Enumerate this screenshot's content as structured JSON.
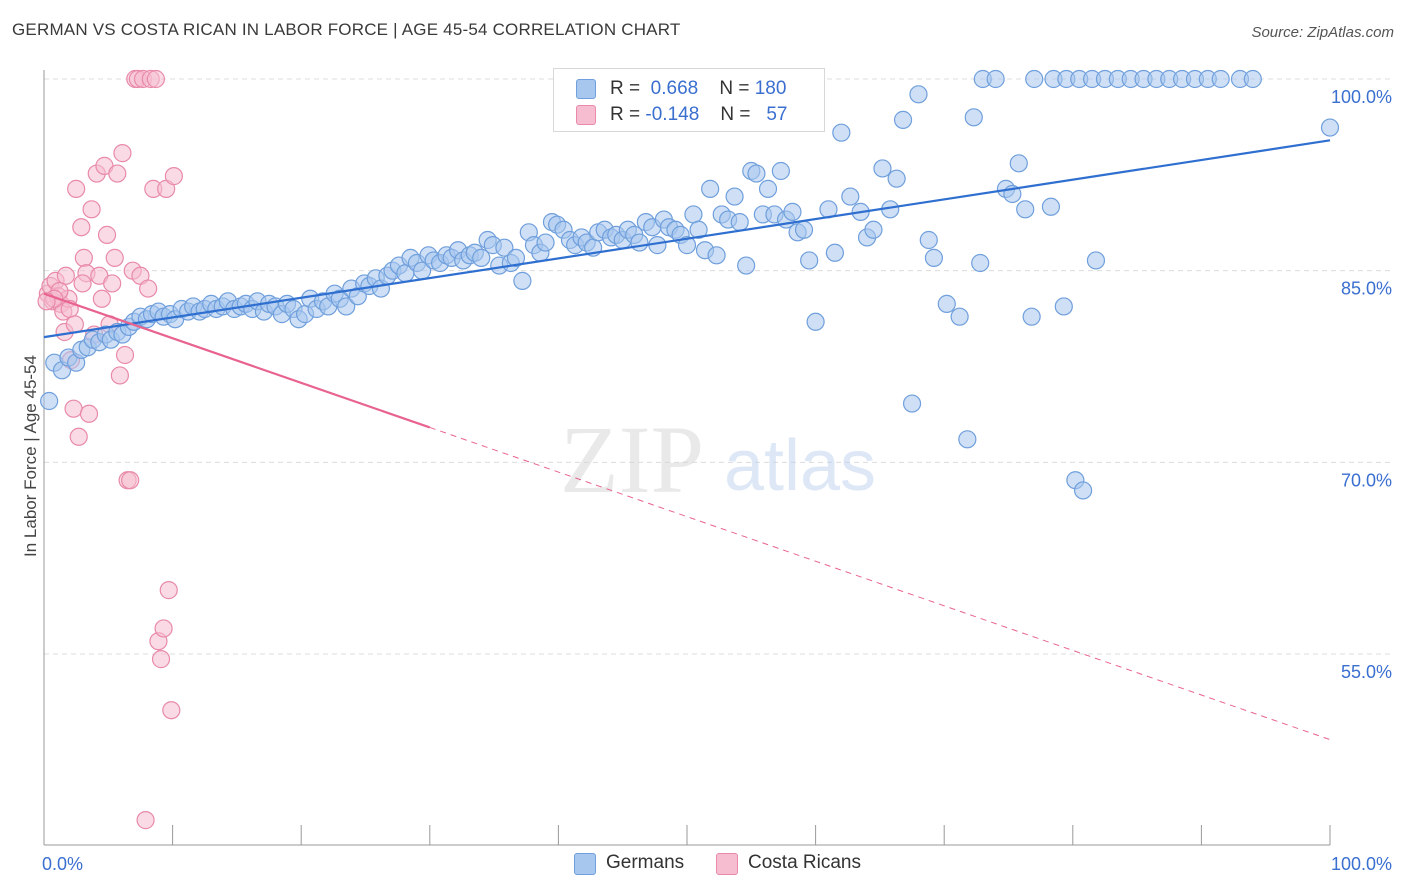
{
  "title": "GERMAN VS COSTA RICAN IN LABOR FORCE | AGE 45-54 CORRELATION CHART",
  "source": "Source: ZipAtlas.com",
  "watermark": {
    "zip": "ZIP",
    "atlas": "atlas"
  },
  "legend": {
    "rows": [
      {
        "r_label": "R =",
        "r_value": "0.668",
        "n_label": "N =",
        "n_value": "180"
      },
      {
        "r_label": "R =",
        "r_value": "-0.148",
        "n_label": "N =",
        "n_value": "57"
      }
    ]
  },
  "bottom_legend": [
    "Germans",
    "Costa Ricans"
  ],
  "colors": {
    "germans_fill": "#a8c7ef",
    "germans_stroke": "#6f9fdc",
    "germans_line": "#2f6fd0",
    "costa_fill": "#f6bdd0",
    "costa_stroke": "#e88aa8",
    "costa_line": "#e8648f",
    "tick_label": "#3a6fd0",
    "grid": "#dcdcdc"
  },
  "chart_data": {
    "type": "scatter",
    "title": "GERMAN VS COSTA RICAN IN LABOR FORCE | AGE 45-54 CORRELATION CHART",
    "xlabel": "",
    "ylabel": "In Labor Force | Age 45-54",
    "xlim": [
      0,
      100
    ],
    "ylim": [
      40,
      102
    ],
    "x_tick_labels": [
      "0.0%",
      "100.0%"
    ],
    "y_ticks": [
      55,
      70,
      85,
      100
    ],
    "y_tick_labels": [
      "55.0%",
      "70.0%",
      "85.0%",
      "100.0%"
    ],
    "grid": "horizontal dashed",
    "series": [
      {
        "name": "Germans",
        "R": 0.668,
        "N": 180,
        "trend": {
          "x": [
            0,
            100
          ],
          "y": [
            79.8,
            95.2
          ],
          "dashed_from": null
        },
        "points": [
          [
            0.4,
            74.8
          ],
          [
            0.8,
            77.8
          ],
          [
            1.4,
            77.2
          ],
          [
            1.9,
            78.2
          ],
          [
            2.5,
            77.8
          ],
          [
            2.9,
            78.8
          ],
          [
            3.4,
            79.0
          ],
          [
            3.8,
            79.6
          ],
          [
            4.3,
            79.4
          ],
          [
            4.8,
            80.0
          ],
          [
            5.2,
            79.6
          ],
          [
            5.7,
            80.2
          ],
          [
            6.1,
            80.0
          ],
          [
            6.6,
            80.6
          ],
          [
            7.0,
            81.0
          ],
          [
            7.5,
            81.4
          ],
          [
            8.0,
            81.2
          ],
          [
            8.4,
            81.6
          ],
          [
            8.9,
            81.8
          ],
          [
            9.3,
            81.4
          ],
          [
            9.8,
            81.6
          ],
          [
            10.2,
            81.2
          ],
          [
            10.7,
            82.0
          ],
          [
            11.2,
            81.8
          ],
          [
            11.6,
            82.2
          ],
          [
            12.1,
            81.8
          ],
          [
            12.5,
            82.0
          ],
          [
            13.0,
            82.4
          ],
          [
            13.4,
            82.0
          ],
          [
            13.9,
            82.2
          ],
          [
            14.3,
            82.6
          ],
          [
            14.8,
            82.0
          ],
          [
            15.3,
            82.2
          ],
          [
            15.7,
            82.4
          ],
          [
            16.2,
            82.0
          ],
          [
            16.6,
            82.6
          ],
          [
            17.1,
            81.8
          ],
          [
            17.5,
            82.4
          ],
          [
            18.0,
            82.2
          ],
          [
            18.5,
            81.6
          ],
          [
            18.9,
            82.4
          ],
          [
            19.4,
            82.0
          ],
          [
            19.8,
            81.2
          ],
          [
            20.3,
            81.6
          ],
          [
            20.7,
            82.8
          ],
          [
            21.2,
            82.0
          ],
          [
            21.7,
            82.6
          ],
          [
            22.1,
            82.2
          ],
          [
            22.6,
            83.2
          ],
          [
            23.0,
            82.8
          ],
          [
            23.5,
            82.2
          ],
          [
            23.9,
            83.6
          ],
          [
            24.4,
            83.0
          ],
          [
            24.9,
            84.0
          ],
          [
            25.3,
            83.8
          ],
          [
            25.8,
            84.4
          ],
          [
            26.2,
            83.6
          ],
          [
            26.7,
            84.6
          ],
          [
            27.1,
            85.0
          ],
          [
            27.6,
            85.4
          ],
          [
            28.1,
            84.8
          ],
          [
            28.5,
            86.0
          ],
          [
            29.0,
            85.6
          ],
          [
            29.4,
            85.0
          ],
          [
            29.9,
            86.2
          ],
          [
            30.3,
            85.8
          ],
          [
            30.8,
            85.6
          ],
          [
            31.3,
            86.2
          ],
          [
            31.7,
            86.0
          ],
          [
            32.2,
            86.6
          ],
          [
            32.6,
            85.8
          ],
          [
            33.1,
            86.2
          ],
          [
            33.5,
            86.4
          ],
          [
            34.0,
            86.0
          ],
          [
            34.5,
            87.4
          ],
          [
            34.9,
            87.0
          ],
          [
            35.4,
            85.4
          ],
          [
            35.8,
            86.8
          ],
          [
            36.3,
            85.6
          ],
          [
            36.7,
            86.0
          ],
          [
            37.2,
            84.2
          ],
          [
            37.7,
            88.0
          ],
          [
            38.1,
            87.0
          ],
          [
            38.6,
            86.4
          ],
          [
            39.0,
            87.2
          ],
          [
            39.5,
            88.8
          ],
          [
            39.9,
            88.6
          ],
          [
            40.4,
            88.2
          ],
          [
            40.9,
            87.4
          ],
          [
            41.3,
            87.0
          ],
          [
            41.8,
            87.6
          ],
          [
            42.2,
            87.2
          ],
          [
            42.7,
            86.8
          ],
          [
            43.1,
            88.0
          ],
          [
            43.6,
            88.2
          ],
          [
            44.1,
            87.6
          ],
          [
            44.5,
            87.8
          ],
          [
            45.0,
            87.4
          ],
          [
            45.4,
            88.2
          ],
          [
            45.9,
            87.8
          ],
          [
            46.3,
            87.2
          ],
          [
            46.8,
            88.8
          ],
          [
            47.3,
            88.4
          ],
          [
            47.7,
            87.0
          ],
          [
            48.2,
            89.0
          ],
          [
            48.6,
            88.4
          ],
          [
            49.1,
            88.2
          ],
          [
            49.5,
            87.8
          ],
          [
            50.0,
            87.0
          ],
          [
            50.5,
            89.4
          ],
          [
            50.9,
            88.2
          ],
          [
            51.4,
            86.6
          ],
          [
            51.8,
            91.4
          ],
          [
            52.3,
            86.2
          ],
          [
            52.7,
            89.4
          ],
          [
            53.2,
            89.0
          ],
          [
            53.7,
            90.8
          ],
          [
            54.1,
            88.8
          ],
          [
            54.6,
            85.4
          ],
          [
            55.0,
            92.8
          ],
          [
            55.4,
            92.6
          ],
          [
            55.9,
            89.4
          ],
          [
            56.3,
            91.4
          ],
          [
            56.8,
            89.4
          ],
          [
            57.3,
            92.8
          ],
          [
            57.7,
            89.0
          ],
          [
            58.2,
            89.6
          ],
          [
            58.6,
            88.0
          ],
          [
            59.1,
            88.2
          ],
          [
            59.5,
            85.8
          ],
          [
            60.0,
            81.0
          ],
          [
            61.0,
            89.8
          ],
          [
            61.5,
            86.4
          ],
          [
            62.0,
            95.8
          ],
          [
            62.7,
            90.8
          ],
          [
            63.5,
            89.6
          ],
          [
            64.0,
            87.6
          ],
          [
            64.5,
            88.2
          ],
          [
            65.2,
            93.0
          ],
          [
            65.8,
            89.8
          ],
          [
            66.3,
            92.2
          ],
          [
            66.8,
            96.8
          ],
          [
            67.5,
            74.6
          ],
          [
            68.0,
            98.8
          ],
          [
            68.8,
            87.4
          ],
          [
            69.2,
            86.0
          ],
          [
            70.2,
            82.4
          ],
          [
            71.2,
            81.4
          ],
          [
            71.8,
            71.8
          ],
          [
            72.3,
            97.0
          ],
          [
            72.8,
            85.6
          ],
          [
            74.8,
            91.4
          ],
          [
            75.3,
            91.0
          ],
          [
            75.8,
            93.4
          ],
          [
            76.3,
            89.8
          ],
          [
            76.8,
            81.4
          ],
          [
            78.3,
            90.0
          ],
          [
            79.3,
            82.2
          ],
          [
            80.2,
            68.6
          ],
          [
            80.8,
            67.8
          ],
          [
            81.8,
            85.8
          ],
          [
            73.0,
            100
          ],
          [
            74.0,
            100
          ],
          [
            77.0,
            100
          ],
          [
            78.5,
            100
          ],
          [
            79.5,
            100
          ],
          [
            80.5,
            100
          ],
          [
            81.5,
            100
          ],
          [
            82.5,
            100
          ],
          [
            83.5,
            100
          ],
          [
            84.5,
            100
          ],
          [
            85.5,
            100
          ],
          [
            86.5,
            100
          ],
          [
            87.5,
            100
          ],
          [
            88.5,
            100
          ],
          [
            89.5,
            100
          ],
          [
            90.5,
            100
          ],
          [
            91.5,
            100
          ],
          [
            93.0,
            100
          ],
          [
            94.0,
            100
          ],
          [
            100.0,
            96.2
          ]
        ]
      },
      {
        "name": "Costa Ricans",
        "R": -0.148,
        "N": 57,
        "trend": {
          "x": [
            0,
            100
          ],
          "y": [
            83.2,
            48.3
          ],
          "dashed_from": 30
        },
        "points": [
          [
            0.3,
            83.2
          ],
          [
            0.5,
            83.8
          ],
          [
            0.7,
            82.6
          ],
          [
            0.9,
            84.2
          ],
          [
            1.1,
            83.0
          ],
          [
            1.3,
            82.4
          ],
          [
            1.5,
            81.8
          ],
          [
            1.7,
            84.6
          ],
          [
            1.9,
            82.8
          ],
          [
            2.1,
            78.0
          ],
          [
            2.3,
            74.2
          ],
          [
            2.5,
            91.4
          ],
          [
            2.7,
            72.0
          ],
          [
            2.9,
            88.4
          ],
          [
            3.1,
            86.0
          ],
          [
            3.3,
            84.8
          ],
          [
            3.5,
            73.8
          ],
          [
            3.7,
            89.8
          ],
          [
            3.9,
            80.0
          ],
          [
            4.1,
            92.6
          ],
          [
            4.3,
            84.6
          ],
          [
            4.5,
            82.8
          ],
          [
            4.7,
            93.2
          ],
          [
            4.9,
            87.8
          ],
          [
            5.1,
            80.8
          ],
          [
            5.3,
            84.0
          ],
          [
            5.5,
            86.0
          ],
          [
            5.7,
            92.6
          ],
          [
            5.9,
            76.8
          ],
          [
            6.1,
            94.2
          ],
          [
            6.3,
            78.4
          ],
          [
            6.5,
            68.6
          ],
          [
            6.7,
            68.6
          ],
          [
            6.9,
            85.0
          ],
          [
            7.1,
            100
          ],
          [
            7.3,
            100
          ],
          [
            7.5,
            84.6
          ],
          [
            7.7,
            100
          ],
          [
            7.9,
            42.0
          ],
          [
            8.1,
            83.6
          ],
          [
            8.3,
            100
          ],
          [
            8.5,
            91.4
          ],
          [
            8.7,
            100
          ],
          [
            8.9,
            56.0
          ],
          [
            9.1,
            54.6
          ],
          [
            9.3,
            57.0
          ],
          [
            9.5,
            91.4
          ],
          [
            9.7,
            60.0
          ],
          [
            9.9,
            50.6
          ],
          [
            10.1,
            92.4
          ],
          [
            2.0,
            82.0
          ],
          [
            1.2,
            83.4
          ],
          [
            0.8,
            82.8
          ],
          [
            1.6,
            80.2
          ],
          [
            2.4,
            80.8
          ],
          [
            3.0,
            84.0
          ],
          [
            0.2,
            82.6
          ]
        ]
      }
    ]
  }
}
